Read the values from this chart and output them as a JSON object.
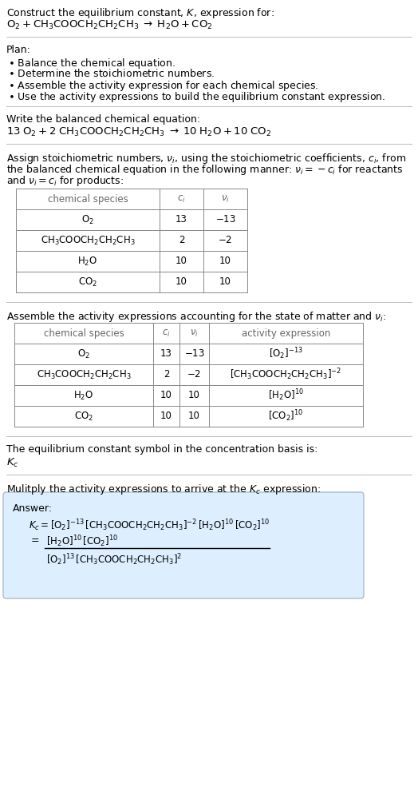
{
  "bg_color": "#ffffff",
  "text_color": "#000000",
  "header_color": "#666666",
  "divider_color": "#aaaaaa",
  "answer_box_color": "#ddeeff",
  "answer_box_edge": "#aabbcc",
  "fontsize_body": 9.0,
  "fontsize_formula": 9.5,
  "fontsize_table": 8.5,
  "sec1_line1": "Construct the equilibrium constant, $K$, expression for:",
  "sec1_line2_plain": "O",
  "sec1_reaction": "$\\mathrm{O_2 + CH_3COOCH_2CH_2CH_3 \\;\\rightarrow\\; H_2O + CO_2}$",
  "plan_header": "Plan:",
  "plan_items": [
    "$\\bullet$ Balance the chemical equation.",
    "$\\bullet$ Determine the stoichiometric numbers.",
    "$\\bullet$ Assemble the activity expression for each chemical species.",
    "$\\bullet$ Use the activity expressions to build the equilibrium constant expression."
  ],
  "balanced_header": "Write the balanced chemical equation:",
  "balanced_eq": "$\\mathrm{13\\;O_2 + 2\\;CH_3COOCH_2CH_2CH_3 \\;\\rightarrow\\; 10\\;H_2O + 10\\;CO_2}$",
  "stoich_header_parts": [
    "Assign stoichiometric numbers, $\\nu_i$, using the stoichiometric coefficients, $c_i$, from",
    "the balanced chemical equation in the following manner: $\\nu_i = -c_i$ for reactants",
    "and $\\nu_i = c_i$ for products:"
  ],
  "table1_col_headers": [
    "chemical species",
    "$c_i$",
    "$\\nu_i$"
  ],
  "table1_rows": [
    [
      "$\\mathrm{O_2}$",
      "13",
      "$-13$"
    ],
    [
      "$\\mathrm{CH_3COOCH_2CH_2CH_3}$",
      "2",
      "$-2$"
    ],
    [
      "$\\mathrm{H_2O}$",
      "10",
      "10"
    ],
    [
      "$\\mathrm{CO_2}$",
      "10",
      "10"
    ]
  ],
  "activity_header": "Assemble the activity expressions accounting for the state of matter and $\\nu_i$:",
  "table2_col_headers": [
    "chemical species",
    "$c_i$",
    "$\\nu_i$",
    "activity expression"
  ],
  "table2_rows": [
    [
      "$\\mathrm{O_2}$",
      "13",
      "$-13$",
      "$\\mathrm{[O_2]^{-13}}$"
    ],
    [
      "$\\mathrm{CH_3COOCH_2CH_2CH_3}$",
      "2",
      "$-2$",
      "$\\mathrm{[CH_3COOCH_2CH_2CH_3]^{-2}}$"
    ],
    [
      "$\\mathrm{H_2O}$",
      "10",
      "10",
      "$\\mathrm{[H_2O]^{10}}$"
    ],
    [
      "$\\mathrm{CO_2}$",
      "10",
      "10",
      "$\\mathrm{[CO_2]^{10}}$"
    ]
  ],
  "kc_header": "The equilibrium constant symbol in the concentration basis is:",
  "kc_symbol": "$K_c$",
  "multiply_header": "Mulitply the activity expressions to arrive at the $K_c$ expression:",
  "answer_label": "Answer:",
  "answer_kc_line": "$K_c = \\mathrm{[O_2]^{-13}\\,[CH_3COOCH_2CH_2CH_3]^{-2}\\,[H_2O]^{10}\\,[CO_2]^{10}}$",
  "answer_num": "$\\mathrm{[H_2O]^{10}\\,[CO_2]^{10}}$",
  "answer_den": "$\\mathrm{[O_2]^{13}\\,[CH_3COOCH_2CH_2CH_3]^2}$"
}
